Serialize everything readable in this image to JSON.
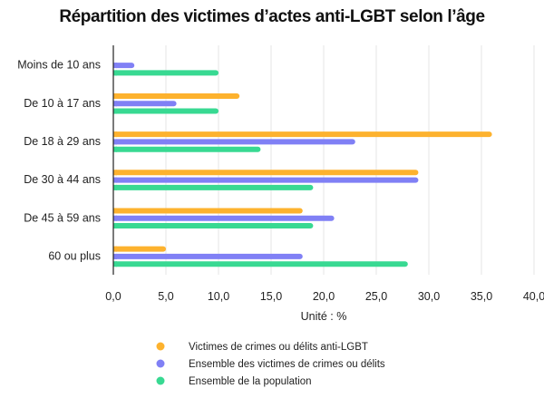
{
  "chart_data": {
    "type": "bar",
    "orientation": "horizontal",
    "title": "Répartition des victimes d’actes anti-LGBT selon l’âge",
    "xlabel": "Unité : %",
    "ylabel": "",
    "xlim": [
      0,
      40
    ],
    "xticks": [
      0,
      5,
      10,
      15,
      20,
      25,
      30,
      35,
      40
    ],
    "xtick_labels": [
      "0,0",
      "5,0",
      "10,0",
      "15,0",
      "20,0",
      "25,0",
      "30,0",
      "35,0",
      "40,0"
    ],
    "grid": true,
    "legend_position": "bottom",
    "categories": [
      "Moins de 10 ans",
      "De 10 à 17 ans",
      "De 18 à 29 ans",
      "De 30 à 44 ans",
      "De 45 à 59 ans",
      "60 ou plus"
    ],
    "series": [
      {
        "name": "Victimes de crimes ou délits anti-LGBT",
        "color": "#fdb22e",
        "values": [
          0,
          12,
          36,
          29,
          18,
          5
        ]
      },
      {
        "name": "Ensemble des victimes de crimes ou délits",
        "color": "#8080f5",
        "values": [
          2,
          6,
          23,
          29,
          21,
          18
        ]
      },
      {
        "name": "Ensemble de la population",
        "color": "#38d992",
        "values": [
          10,
          10,
          14,
          19,
          19,
          28
        ]
      }
    ]
  }
}
